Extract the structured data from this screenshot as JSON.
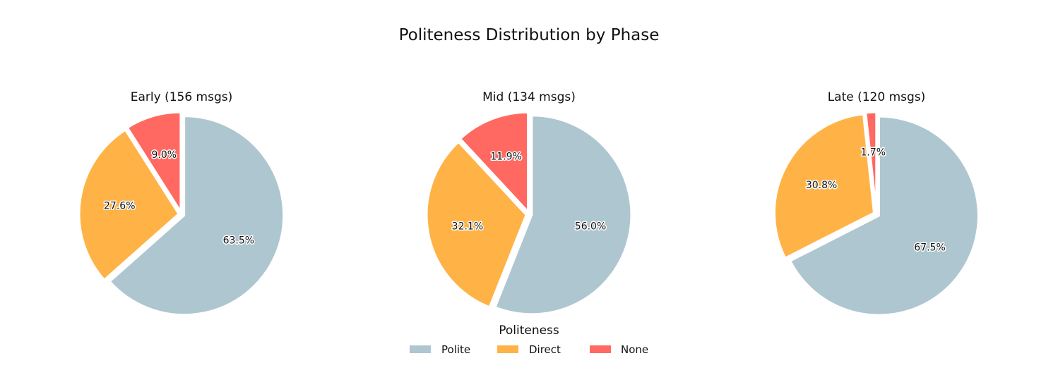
{
  "chart_data": {
    "type": "pie",
    "title": "Politeness Distribution by Phase",
    "legend": {
      "title": "Politeness",
      "placement": "bottom-center",
      "entries": [
        "Polite",
        "Direct",
        "None"
      ]
    },
    "colors": {
      "Polite": "#aec6cf",
      "Direct": "#ffb347",
      "None": "#ff6961"
    },
    "pies": [
      {
        "title": "Early (156 msgs)",
        "slices": [
          {
            "label": "None",
            "value": 9.0,
            "text": "9.0%"
          },
          {
            "label": "Direct",
            "value": 27.6,
            "text": "27.6%"
          },
          {
            "label": "Polite",
            "value": 63.5,
            "text": "63.5%"
          }
        ]
      },
      {
        "title": "Mid (134 msgs)",
        "slices": [
          {
            "label": "None",
            "value": 11.9,
            "text": "11.9%"
          },
          {
            "label": "Direct",
            "value": 32.1,
            "text": "32.1%"
          },
          {
            "label": "Polite",
            "value": 56.0,
            "text": "56.0%"
          }
        ]
      },
      {
        "title": "Late (120 msgs)",
        "slices": [
          {
            "label": "None",
            "value": 1.7,
            "text": "1.7%"
          },
          {
            "label": "Direct",
            "value": 30.8,
            "text": "30.8%"
          },
          {
            "label": "Polite",
            "value": 67.5,
            "text": "67.5%"
          }
        ]
      }
    ]
  }
}
